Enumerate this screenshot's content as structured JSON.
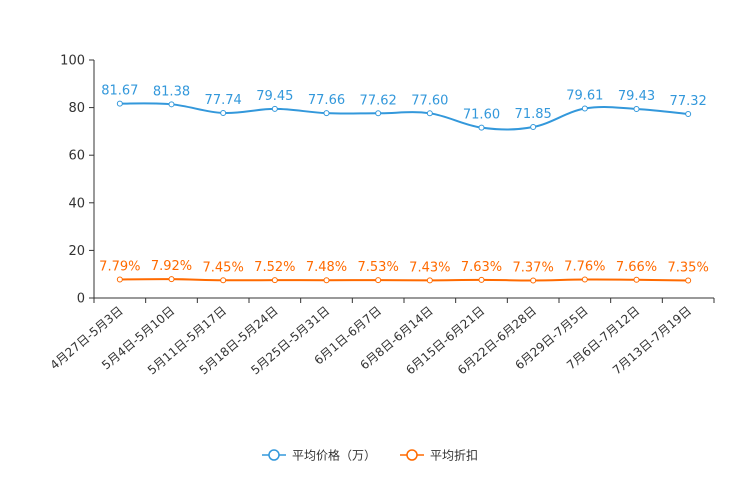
{
  "chart_data": {
    "type": "line",
    "categories": [
      "4月27日-5月3日",
      "5月4日-5月10日",
      "5月11日-5月17日",
      "5月18日-5月24日",
      "5月25日-5月31日",
      "6月1日-6月7日",
      "6月8日-6月14日",
      "6月15日-6月21日",
      "6月22日-6月28日",
      "6月29日-7月5日",
      "7月6日-7月12日",
      "7月13日-7月19日"
    ],
    "series": [
      {
        "name": "平均价格（万）",
        "values": [
          81.67,
          81.38,
          77.74,
          79.45,
          77.66,
          77.62,
          77.6,
          71.6,
          71.85,
          79.61,
          79.43,
          77.32
        ],
        "labels": [
          "81.67",
          "81.38",
          "77.74",
          "79.45",
          "77.66",
          "77.62",
          "77.60",
          "71.60",
          "71.85",
          "79.61",
          "79.43",
          "77.32"
        ],
        "color": "#3398DB"
      },
      {
        "name": "平均折扣",
        "values": [
          7.79,
          7.92,
          7.45,
          7.52,
          7.48,
          7.53,
          7.43,
          7.63,
          7.37,
          7.76,
          7.66,
          7.35
        ],
        "labels": [
          "7.79%",
          "7.92%",
          "7.45%",
          "7.52%",
          "7.48%",
          "7.53%",
          "7.43%",
          "7.63%",
          "7.37%",
          "7.76%",
          "7.66%",
          "7.35%"
        ],
        "color": "#FF6A00"
      }
    ],
    "yticks": [
      "0",
      "20",
      "40",
      "60",
      "80",
      "100"
    ],
    "ylim": [
      0,
      100
    ],
    "title": "",
    "xlabel": "",
    "ylabel": "",
    "legend_position": "bottom-center",
    "grid": false,
    "smooth": true
  }
}
